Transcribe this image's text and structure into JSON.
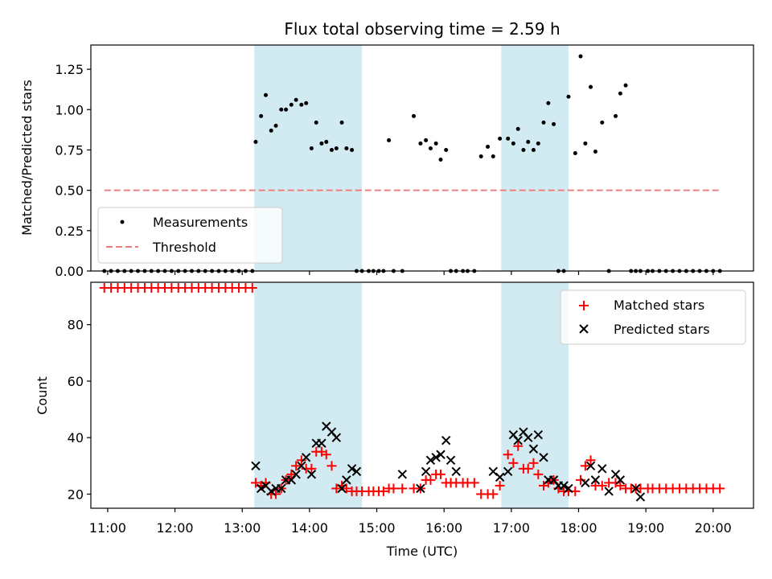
{
  "chart_data": [
    {
      "type": "scatter",
      "title": "Flux total observing time = 2.59 h",
      "xlabel": "",
      "ylabel": "Matched/Predicted stars",
      "xlim": [
        10.75,
        20.6
      ],
      "ylim": [
        0,
        1.4
      ],
      "yticks": [
        0.0,
        0.25,
        0.5,
        0.75,
        1.0,
        1.25
      ],
      "ytick_labels": [
        "0.00",
        "0.25",
        "0.50",
        "0.75",
        "1.00",
        "1.25"
      ],
      "legend_position": "lower-left",
      "shaded_intervals": [
        [
          13.18,
          14.78
        ],
        [
          16.85,
          17.85
        ]
      ],
      "shade_color": "#add8e6",
      "series": [
        {
          "name": "Measurements",
          "kind": "points",
          "color": "#000000",
          "x": [
            10.95,
            11.05,
            11.15,
            11.25,
            11.35,
            11.45,
            11.55,
            11.65,
            11.75,
            11.85,
            11.95,
            12.05,
            12.15,
            12.25,
            12.35,
            12.45,
            12.55,
            12.65,
            12.75,
            12.85,
            12.95,
            13.05,
            13.15,
            13.2,
            13.28,
            13.35,
            13.43,
            13.5,
            13.58,
            13.65,
            13.73,
            13.8,
            13.88,
            13.95,
            14.03,
            14.1,
            14.18,
            14.25,
            14.33,
            14.4,
            14.48,
            14.55,
            14.63,
            14.7,
            14.78,
            14.88,
            14.95,
            15.03,
            15.1,
            15.18,
            15.25,
            15.38,
            15.55,
            15.65,
            15.73,
            15.8,
            15.88,
            15.95,
            16.03,
            16.1,
            16.18,
            16.28,
            16.35,
            16.45,
            16.55,
            16.65,
            16.73,
            16.83,
            16.95,
            17.03,
            17.1,
            17.18,
            17.25,
            17.33,
            17.4,
            17.48,
            17.55,
            17.63,
            17.7,
            17.78,
            17.85,
            17.95,
            18.03,
            18.1,
            18.18,
            18.25,
            18.35,
            18.45,
            18.55,
            18.62,
            18.7,
            18.78,
            18.85,
            18.92,
            19.03,
            19.1,
            19.2,
            19.3,
            19.4,
            19.5,
            19.6,
            19.7,
            19.8,
            19.9,
            20.0,
            20.1
          ],
          "y": [
            0,
            0,
            0,
            0,
            0,
            0,
            0,
            0,
            0,
            0,
            0,
            0,
            0,
            0,
            0,
            0,
            0,
            0,
            0,
            0,
            0,
            0,
            0,
            0.8,
            0.96,
            1.09,
            0.87,
            0.9,
            1.0,
            1.0,
            1.03,
            1.06,
            1.03,
            1.04,
            0.76,
            0.92,
            0.79,
            0.8,
            0.75,
            0.76,
            0.92,
            0.76,
            0.75,
            0,
            0,
            0,
            0,
            0,
            0,
            0.81,
            0,
            0,
            0.96,
            0.79,
            0.81,
            0.76,
            0.79,
            0.69,
            0.75,
            0,
            0,
            0,
            0,
            0,
            0.71,
            0.77,
            0.71,
            0.82,
            0.82,
            0.79,
            0.88,
            0.75,
            0.8,
            0.75,
            0.79,
            0.92,
            1.04,
            0.91,
            0,
            0,
            1.08,
            0.73,
            1.33,
            0.79,
            1.14,
            0.74,
            0.92,
            0,
            0.96,
            1.1,
            1.15,
            0,
            0,
            0,
            0,
            0,
            0,
            0,
            0,
            0,
            0,
            0,
            0,
            0,
            0,
            0
          ]
        },
        {
          "name": "Threshold",
          "kind": "dashed-line",
          "color": "#f08080",
          "x": [
            10.95,
            20.1
          ],
          "y": [
            0.5,
            0.5
          ]
        }
      ]
    },
    {
      "type": "scatter",
      "title": "",
      "xlabel": "Time (UTC)",
      "ylabel": "Count",
      "xlim": [
        10.75,
        20.6
      ],
      "ylim": [
        15,
        95
      ],
      "yticks": [
        20,
        40,
        60,
        80
      ],
      "ytick_labels": [
        "20",
        "40",
        "60",
        "80"
      ],
      "xticks": [
        11,
        12,
        13,
        14,
        15,
        16,
        17,
        18,
        19,
        20
      ],
      "xtick_labels": [
        "11:00",
        "12:00",
        "13:00",
        "14:00",
        "15:00",
        "16:00",
        "17:00",
        "18:00",
        "19:00",
        "20:00"
      ],
      "legend_position": "upper-right",
      "shaded_intervals": [
        [
          13.18,
          14.78
        ],
        [
          16.85,
          17.85
        ]
      ],
      "shade_color": "#add8e6",
      "series": [
        {
          "name": "Matched stars",
          "marker": "plus",
          "color": "#ff0000",
          "x": [
            10.95,
            11.05,
            11.15,
            11.25,
            11.35,
            11.45,
            11.55,
            11.65,
            11.75,
            11.85,
            11.95,
            12.05,
            12.15,
            12.25,
            12.35,
            12.45,
            12.55,
            12.65,
            12.75,
            12.85,
            12.95,
            13.05,
            13.15,
            13.2,
            13.28,
            13.35,
            13.43,
            13.5,
            13.58,
            13.65,
            13.73,
            13.8,
            13.88,
            13.95,
            14.03,
            14.1,
            14.18,
            14.25,
            14.33,
            14.4,
            14.48,
            14.55,
            14.63,
            14.7,
            14.78,
            14.88,
            14.95,
            15.03,
            15.1,
            15.18,
            15.25,
            15.38,
            15.55,
            15.65,
            15.73,
            15.8,
            15.88,
            15.95,
            16.03,
            16.1,
            16.18,
            16.28,
            16.35,
            16.45,
            16.55,
            16.65,
            16.73,
            16.83,
            16.95,
            17.03,
            17.1,
            17.18,
            17.25,
            17.33,
            17.4,
            17.48,
            17.55,
            17.63,
            17.7,
            17.78,
            17.85,
            17.95,
            18.03,
            18.1,
            18.18,
            18.25,
            18.35,
            18.45,
            18.55,
            18.62,
            18.7,
            18.78,
            18.85,
            18.92,
            19.03,
            19.1,
            19.2,
            19.3,
            19.4,
            19.5,
            19.6,
            19.7,
            19.8,
            19.9,
            20.0,
            20.1
          ],
          "y": [
            93,
            93,
            93,
            93,
            93,
            93,
            93,
            93,
            93,
            93,
            93,
            93,
            93,
            93,
            93,
            93,
            93,
            93,
            93,
            93,
            93,
            93,
            93,
            24,
            23,
            24,
            20,
            20,
            22,
            25,
            27,
            30,
            32,
            29,
            29,
            35,
            35,
            34,
            30,
            22,
            23,
            22,
            21,
            21,
            21,
            21,
            21,
            21,
            21,
            22,
            22,
            22,
            22,
            22,
            25,
            25,
            27,
            27,
            24,
            24,
            24,
            24,
            24,
            24,
            20,
            20,
            20,
            23,
            34,
            31,
            37,
            29,
            29,
            31,
            27,
            23,
            24,
            25,
            22,
            21,
            21,
            21,
            25,
            30,
            32,
            23,
            23,
            24,
            24,
            23,
            22,
            22,
            22,
            22,
            22,
            22,
            22,
            22,
            22,
            22,
            22,
            22,
            22,
            22,
            22,
            22
          ]
        },
        {
          "name": "Predicted stars",
          "marker": "x",
          "color": "#000000",
          "x": [
            13.2,
            13.28,
            13.35,
            13.43,
            13.5,
            13.58,
            13.65,
            13.73,
            13.8,
            13.88,
            13.95,
            14.03,
            14.1,
            14.18,
            14.25,
            14.33,
            14.4,
            14.48,
            14.55,
            14.63,
            14.7,
            15.38,
            15.65,
            15.73,
            15.8,
            15.88,
            15.95,
            16.03,
            16.1,
            16.18,
            16.73,
            16.83,
            16.95,
            17.03,
            17.1,
            17.18,
            17.25,
            17.33,
            17.4,
            17.48,
            17.55,
            17.63,
            17.7,
            17.78,
            17.85,
            18.1,
            18.18,
            18.25,
            18.35,
            18.45,
            18.55,
            18.62,
            18.85,
            18.92
          ],
          "y": [
            30,
            22,
            23,
            21,
            22,
            22,
            25,
            25,
            27,
            30,
            33,
            27,
            38,
            38,
            44,
            42,
            40,
            22,
            25,
            29,
            28,
            27,
            22,
            28,
            32,
            33,
            34,
            39,
            32,
            28,
            28,
            26,
            28,
            41,
            39,
            42,
            40,
            36,
            41,
            33,
            25,
            25,
            23,
            23,
            22,
            24,
            30,
            25,
            29,
            21,
            27,
            25,
            22,
            19
          ]
        }
      ]
    }
  ]
}
